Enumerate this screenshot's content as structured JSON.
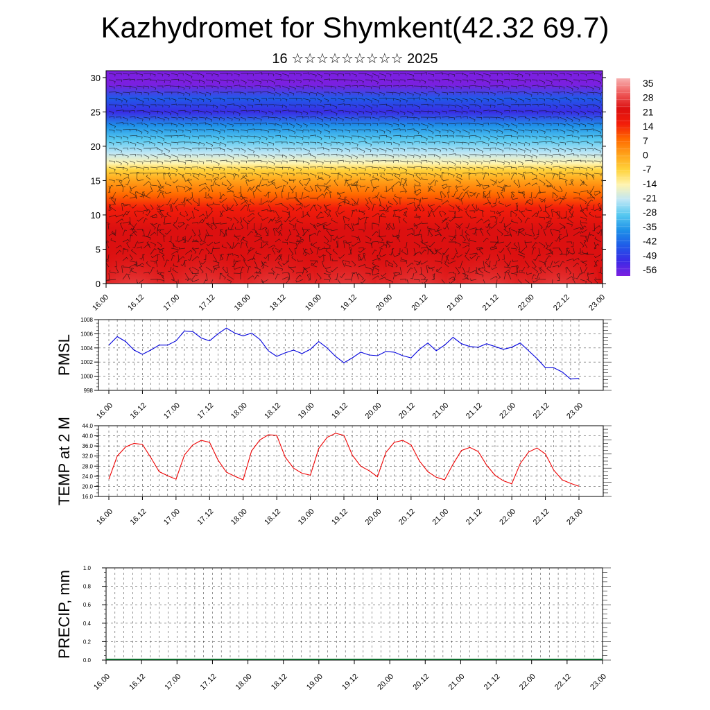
{
  "header": {
    "title": "Kazhydromet for Shymkent(42.32 69.7)",
    "subtitle": "16 ☆☆☆☆☆☆☆☆☆ 2025"
  },
  "time_ticks": [
    "16.00",
    "16.12",
    "17.00",
    "17.12",
    "18.00",
    "18.12",
    "19.00",
    "19.12",
    "20.00",
    "20.12",
    "21.00",
    "21.12",
    "22.00",
    "22.12",
    "23.00"
  ],
  "chart_data": [
    {
      "id": "temperature-cross-section",
      "type": "heatmap",
      "title": "",
      "xlabel": "",
      "ylabel": "",
      "x": [
        "16.00",
        "16.12",
        "17.00",
        "17.12",
        "18.00",
        "18.12",
        "19.00",
        "19.12",
        "20.00",
        "20.12",
        "21.00",
        "21.12",
        "22.00",
        "22.12",
        "23.00"
      ],
      "yticks": [
        "0",
        "5",
        "10",
        "15",
        "20",
        "25",
        "30"
      ],
      "ylim": [
        0,
        31
      ],
      "colorbar_labels": [
        "35",
        "28",
        "21",
        "14",
        "7",
        "0",
        "-7",
        "-14",
        "-21",
        "-28",
        "-35",
        "-42",
        "-49",
        "-56"
      ],
      "colorbar_range": [
        -60,
        38
      ],
      "colorscale": [
        "#7b1fe0",
        "#3a2be6",
        "#1f5be8",
        "#1e90e8",
        "#55c8f0",
        "#bfe6f5",
        "#fff4b0",
        "#ffd23a",
        "#ffa21a",
        "#ff6a00",
        "#f21d0a",
        "#dc1010",
        "#ef5a5a",
        "#f7b0b0"
      ],
      "surface_temp_amplitude_note": "",
      "wind_barbs": true
    },
    {
      "id": "pmsl",
      "type": "line",
      "title": "",
      "ylabel": "PMSL",
      "xlabel": "",
      "ylim": [
        998,
        1008
      ],
      "yticks": [
        "998",
        "1000",
        "1002",
        "1004",
        "1006",
        "1008"
      ],
      "color": "#0000dd",
      "x_step_hours": 3,
      "values": [
        1004.4,
        1005.6,
        1004.9,
        1003.7,
        1003.1,
        1003.7,
        1004.4,
        1004.4,
        1005.0,
        1006.4,
        1006.3,
        1005.4,
        1005.0,
        1006.0,
        1006.8,
        1006.1,
        1005.7,
        1006.1,
        1005.2,
        1003.6,
        1002.8,
        1003.3,
        1003.7,
        1003.2,
        1003.8,
        1004.9,
        1004.0,
        1002.8,
        1001.9,
        1002.6,
        1003.4,
        1003.0,
        1002.9,
        1003.5,
        1003.4,
        1002.9,
        1002.6,
        1003.8,
        1004.7,
        1003.6,
        1004.4,
        1005.5,
        1004.6,
        1004.2,
        1004.1,
        1004.6,
        1004.2,
        1003.8,
        1004.1,
        1004.7,
        1003.6,
        1002.5,
        1001.2,
        1001.2,
        1000.6,
        999.6,
        999.7
      ],
      "grid": true
    },
    {
      "id": "temp-2m",
      "type": "line",
      "title": "",
      "ylabel": "TEMP at 2 M",
      "xlabel": "",
      "ylim": [
        16,
        44
      ],
      "yticks": [
        "16.0",
        "20.0",
        "24.0",
        "28.0",
        "32.0",
        "36.0",
        "40.0",
        "44.0"
      ],
      "color": "#ee0000",
      "x_step_hours": 3,
      "values": [
        22.8,
        32.0,
        35.6,
        37.0,
        36.6,
        31.4,
        25.8,
        24.2,
        22.8,
        32.4,
        36.4,
        38.2,
        37.4,
        30.4,
        25.6,
        24.0,
        22.6,
        34.0,
        38.4,
        40.4,
        40.2,
        31.6,
        27.2,
        25.2,
        24.4,
        35.0,
        39.4,
        41.0,
        40.2,
        32.4,
        28.0,
        26.2,
        23.8,
        33.4,
        37.4,
        38.2,
        36.4,
        30.0,
        25.8,
        23.6,
        22.6,
        28.8,
        34.2,
        35.4,
        33.8,
        28.4,
        24.4,
        22.2,
        21.0,
        29.0,
        33.6,
        35.2,
        32.8,
        26.4,
        22.6,
        21.2,
        20.0
      ],
      "grid": true
    },
    {
      "id": "precip",
      "type": "bar",
      "title": "",
      "ylabel": "PRECIP, mm",
      "xlabel": "",
      "ylim": [
        0,
        1
      ],
      "yticks": [
        "0.0",
        "0.2",
        "0.4",
        "0.6",
        "0.8",
        "1.0"
      ],
      "values": [],
      "grid": true
    }
  ]
}
